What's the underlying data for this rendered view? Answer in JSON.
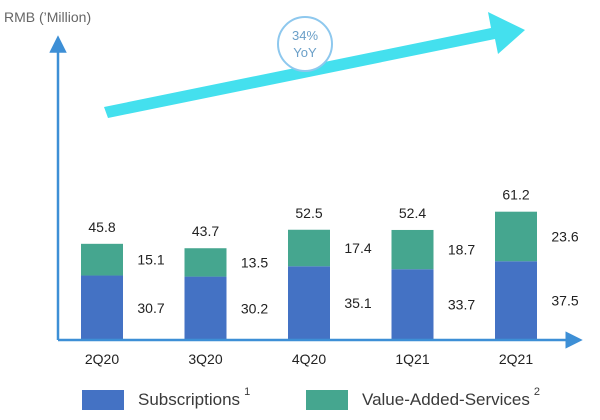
{
  "chart_data": {
    "type": "bar",
    "stacked": true,
    "ylabel": "RMB (’Million)",
    "categories": [
      "2Q20",
      "3Q20",
      "4Q20",
      "1Q21",
      "2Q21"
    ],
    "series": [
      {
        "name": "Subscriptions",
        "footnote": "1",
        "color": "#4472c4",
        "values": [
          30.7,
          30.2,
          35.1,
          33.7,
          37.5
        ]
      },
      {
        "name": "Value-Added-Services",
        "footnote": "2",
        "color": "#45a68f",
        "values": [
          15.1,
          13.5,
          17.4,
          18.7,
          23.6
        ]
      }
    ],
    "totals": [
      45.8,
      43.7,
      52.5,
      52.4,
      61.2
    ],
    "ylim": [
      0,
      70
    ],
    "annotation": {
      "line1": "34%",
      "line2": "YoY"
    },
    "legend_position": "bottom",
    "colors": {
      "axis": "#3d8fd6",
      "trend_arrow": "#44e0ee",
      "badge_border": "#8ec8ee",
      "badge_text": "#6a9fc8",
      "label_text": "#222222"
    }
  }
}
